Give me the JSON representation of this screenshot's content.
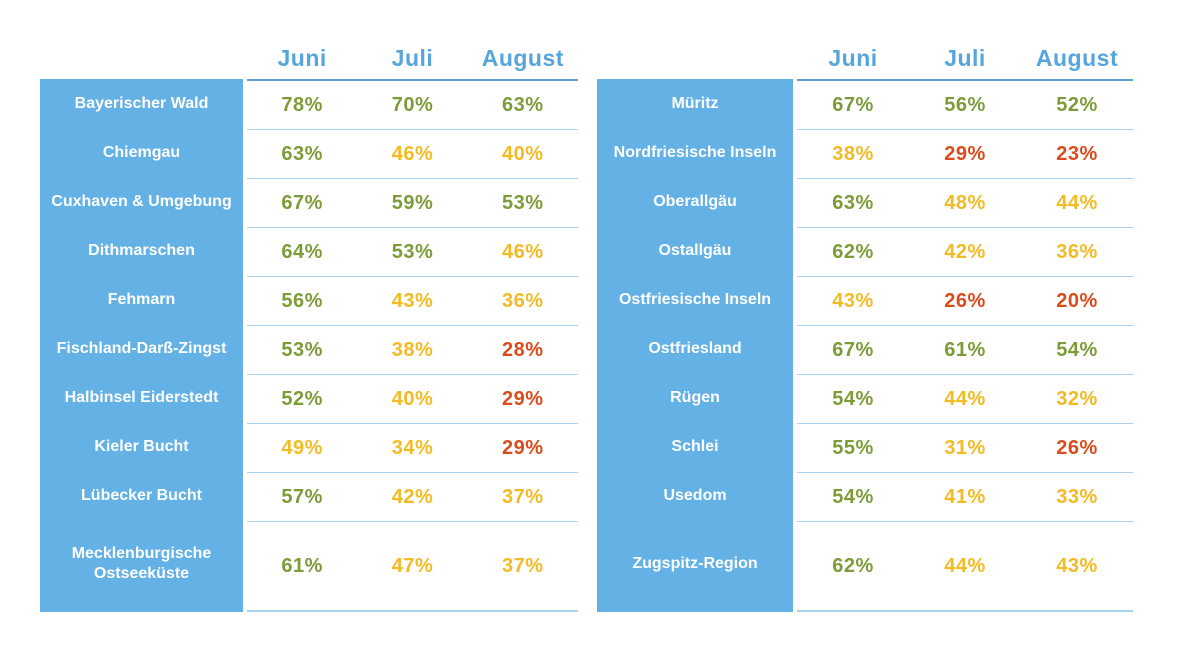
{
  "palette": {
    "blue_bg": "#63b1e5",
    "header_text": "#56a5dc",
    "separator": "#a9d3ee",
    "header_line": "#5b9fd3",
    "green": "#7d9c38",
    "yellow": "#f3ba23",
    "red": "#dc4b1c",
    "label_text": "#ffffff"
  },
  "chart_data": [
    {
      "type": "table",
      "columns": [
        "Juni",
        "Juli",
        "August"
      ],
      "rows": [
        {
          "label": "Bayerischer Wald",
          "values": [
            78,
            70,
            63
          ],
          "levels": [
            "green",
            "green",
            "green"
          ]
        },
        {
          "label": "Chiemgau",
          "values": [
            63,
            46,
            40
          ],
          "levels": [
            "green",
            "yellow",
            "yellow"
          ]
        },
        {
          "label": "Cuxhaven & Umgebung",
          "values": [
            67,
            59,
            53
          ],
          "levels": [
            "green",
            "green",
            "green"
          ]
        },
        {
          "label": "Dithmarschen",
          "values": [
            64,
            53,
            46
          ],
          "levels": [
            "green",
            "green",
            "yellow"
          ]
        },
        {
          "label": "Fehmarn",
          "values": [
            56,
            43,
            36
          ],
          "levels": [
            "green",
            "yellow",
            "yellow"
          ]
        },
        {
          "label": "Fischland-Darß-Zingst",
          "values": [
            53,
            38,
            28
          ],
          "levels": [
            "green",
            "yellow",
            "red"
          ]
        },
        {
          "label": "Halbinsel Eiderstedt",
          "values": [
            52,
            40,
            29
          ],
          "levels": [
            "green",
            "yellow",
            "red"
          ]
        },
        {
          "label": "Kieler Bucht",
          "values": [
            49,
            34,
            29
          ],
          "levels": [
            "yellow",
            "yellow",
            "red"
          ]
        },
        {
          "label": "Lübecker Bucht",
          "values": [
            57,
            42,
            37
          ],
          "levels": [
            "green",
            "yellow",
            "yellow"
          ]
        },
        {
          "label": "Mecklenburgische Ostseeküste",
          "values": [
            61,
            47,
            37
          ],
          "levels": [
            "green",
            "yellow",
            "yellow"
          ]
        }
      ]
    },
    {
      "type": "table",
      "columns": [
        "Juni",
        "Juli",
        "August"
      ],
      "rows": [
        {
          "label": "Müritz",
          "values": [
            67,
            56,
            52
          ],
          "levels": [
            "green",
            "green",
            "green"
          ]
        },
        {
          "label": "Nordfriesische Inseln",
          "values": [
            38,
            29,
            23
          ],
          "levels": [
            "yellow",
            "red",
            "red"
          ]
        },
        {
          "label": "Oberallgäu",
          "values": [
            63,
            48,
            44
          ],
          "levels": [
            "green",
            "yellow",
            "yellow"
          ]
        },
        {
          "label": "Ostallgäu",
          "values": [
            62,
            42,
            36
          ],
          "levels": [
            "green",
            "yellow",
            "yellow"
          ]
        },
        {
          "label": "Ostfriesische Inseln",
          "values": [
            43,
            26,
            20
          ],
          "levels": [
            "yellow",
            "red",
            "red"
          ]
        },
        {
          "label": "Ostfriesland",
          "values": [
            67,
            61,
            54
          ],
          "levels": [
            "green",
            "green",
            "green"
          ]
        },
        {
          "label": "Rügen",
          "values": [
            54,
            44,
            32
          ],
          "levels": [
            "green",
            "yellow",
            "yellow"
          ]
        },
        {
          "label": "Schlei",
          "values": [
            55,
            31,
            26
          ],
          "levels": [
            "green",
            "yellow",
            "red"
          ]
        },
        {
          "label": "Usedom",
          "values": [
            54,
            41,
            33
          ],
          "levels": [
            "green",
            "yellow",
            "yellow"
          ]
        },
        {
          "label": "Zugspitz-Region",
          "values": [
            62,
            44,
            43
          ],
          "levels": [
            "green",
            "yellow",
            "yellow"
          ]
        }
      ]
    }
  ],
  "value_suffix": "%"
}
